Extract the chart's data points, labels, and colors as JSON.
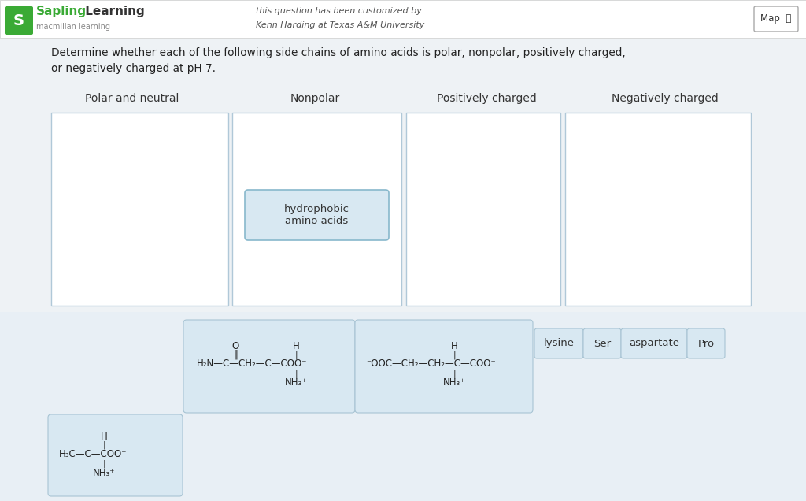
{
  "bg_color": "#eef2f5",
  "header_bg": "#ffffff",
  "box_bg": "#dce8f2",
  "box_border": "#a8c4d4",
  "card_bg": "#d8e8f2",
  "card_border": "#a8c4d4",
  "text_dark": "#222222",
  "text_med": "#444444",
  "text_gray": "#666666",
  "green_color": "#3aaa35",
  "title_text": "Determine whether each of the following side chains of amino acids is polar, nonpolar, positively charged,\nor negatively charged at pH 7.",
  "columns": [
    "Polar and neutral",
    "Nonpolar",
    "Positively charged",
    "Negatively charged"
  ],
  "label_buttons": [
    "lysine",
    "Ser",
    "aspartate",
    "Pro"
  ],
  "hydrophobic_label": "hydrophobic\namino acids",
  "customized_line1": "this question has been customized by",
  "customized_line2": "Kenn Harding at Texas A&M University"
}
